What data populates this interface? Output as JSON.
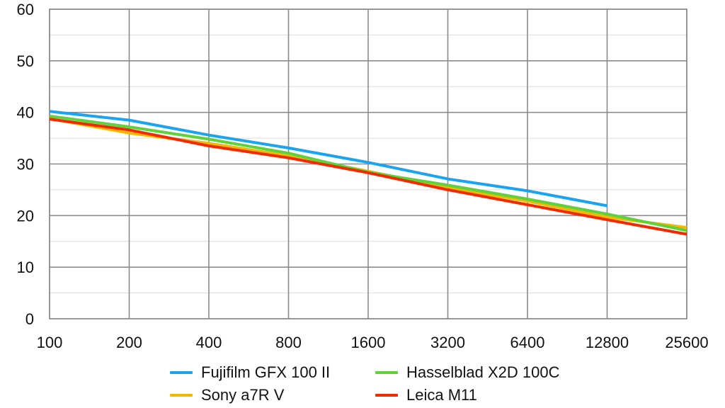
{
  "chart_data": {
    "type": "line",
    "title": "",
    "xlabel": "",
    "ylabel": "",
    "x_scale": "log2",
    "x": [
      100,
      200,
      400,
      800,
      1600,
      3200,
      6400,
      12800,
      25600
    ],
    "x_tick_labels": [
      "100",
      "200",
      "400",
      "800",
      "1600",
      "3200",
      "6400",
      "12800",
      "25600"
    ],
    "y_ticks": [
      0,
      10,
      20,
      30,
      40,
      50,
      60
    ],
    "y_tick_labels": [
      "0",
      "10",
      "20",
      "30",
      "40",
      "50",
      "60"
    ],
    "ylim": [
      0,
      60
    ],
    "grid": true,
    "minor_y_grid_step": 5,
    "legend_position": "bottom",
    "series": [
      {
        "name": "Fujifilm GFX 100 II",
        "color": "#1aa3ef",
        "values": [
          40.2,
          38.5,
          35.6,
          33.1,
          30.3,
          27.1,
          24.8,
          21.9,
          null
        ]
      },
      {
        "name": "Hasselblad X2D 100C",
        "color": "#5fd13a",
        "values": [
          39.3,
          37.2,
          34.8,
          32.1,
          28.4,
          25.9,
          23.2,
          20.3,
          17.1
        ]
      },
      {
        "name": "Sony a7R V",
        "color": "#f5b800",
        "values": [
          38.8,
          36.0,
          34.0,
          31.6,
          28.6,
          25.4,
          22.8,
          19.7,
          17.7
        ]
      },
      {
        "name": "Leica M11",
        "color": "#f12a00",
        "values": [
          38.7,
          36.6,
          33.5,
          31.2,
          28.3,
          25.0,
          22.1,
          19.2,
          16.4
        ]
      }
    ],
    "legend_order": [
      0,
      1,
      2,
      3
    ]
  }
}
